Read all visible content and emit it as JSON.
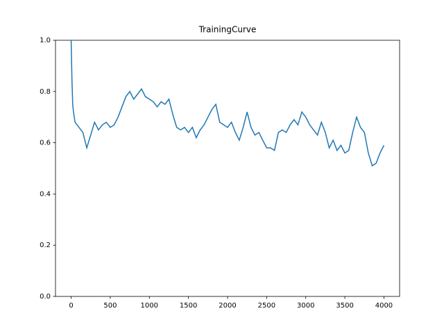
{
  "chart_data": {
    "type": "line",
    "title": "TrainingCurve",
    "x": [
      0,
      10,
      20,
      30,
      50,
      100,
      150,
      200,
      250,
      300,
      350,
      400,
      450,
      500,
      550,
      600,
      650,
      700,
      750,
      800,
      850,
      900,
      950,
      1000,
      1050,
      1100,
      1150,
      1200,
      1250,
      1300,
      1350,
      1400,
      1450,
      1500,
      1550,
      1600,
      1650,
      1700,
      1750,
      1800,
      1850,
      1900,
      1950,
      2000,
      2050,
      2100,
      2150,
      2200,
      2250,
      2300,
      2350,
      2400,
      2450,
      2500,
      2550,
      2600,
      2650,
      2700,
      2750,
      2800,
      2850,
      2900,
      2950,
      3000,
      3050,
      3100,
      3150,
      3200,
      3250,
      3300,
      3350,
      3400,
      3450,
      3500,
      3550,
      3600,
      3650,
      3700,
      3750,
      3800,
      3850,
      3900,
      3950,
      4000
    ],
    "series": [
      {
        "color": "#1f77b4",
        "values": [
          1.0,
          0.85,
          0.75,
          0.72,
          0.68,
          0.66,
          0.64,
          0.58,
          0.63,
          0.68,
          0.65,
          0.67,
          0.68,
          0.66,
          0.67,
          0.7,
          0.74,
          0.78,
          0.8,
          0.77,
          0.79,
          0.81,
          0.78,
          0.77,
          0.76,
          0.74,
          0.76,
          0.75,
          0.77,
          0.71,
          0.66,
          0.65,
          0.66,
          0.64,
          0.66,
          0.62,
          0.65,
          0.67,
          0.7,
          0.73,
          0.75,
          0.68,
          0.67,
          0.66,
          0.68,
          0.64,
          0.61,
          0.66,
          0.72,
          0.66,
          0.63,
          0.64,
          0.61,
          0.58,
          0.58,
          0.57,
          0.64,
          0.65,
          0.64,
          0.67,
          0.69,
          0.67,
          0.72,
          0.7,
          0.67,
          0.65,
          0.63,
          0.68,
          0.64,
          0.58,
          0.61,
          0.57,
          0.59,
          0.56,
          0.57,
          0.64,
          0.7,
          0.66,
          0.64,
          0.56,
          0.51,
          0.52,
          0.56,
          0.59
        ]
      }
    ],
    "xlim": [
      -200,
      4200
    ],
    "xticks": [
      0,
      500,
      1000,
      1500,
      2000,
      2500,
      3000,
      3500,
      4000
    ],
    "ylim": [
      0,
      1
    ],
    "yticks": [
      {
        "value": 0,
        "label": "0.0"
      },
      0.2,
      0.4,
      0.6,
      0.8,
      {
        "value": 1,
        "label": "1.0"
      }
    ]
  }
}
